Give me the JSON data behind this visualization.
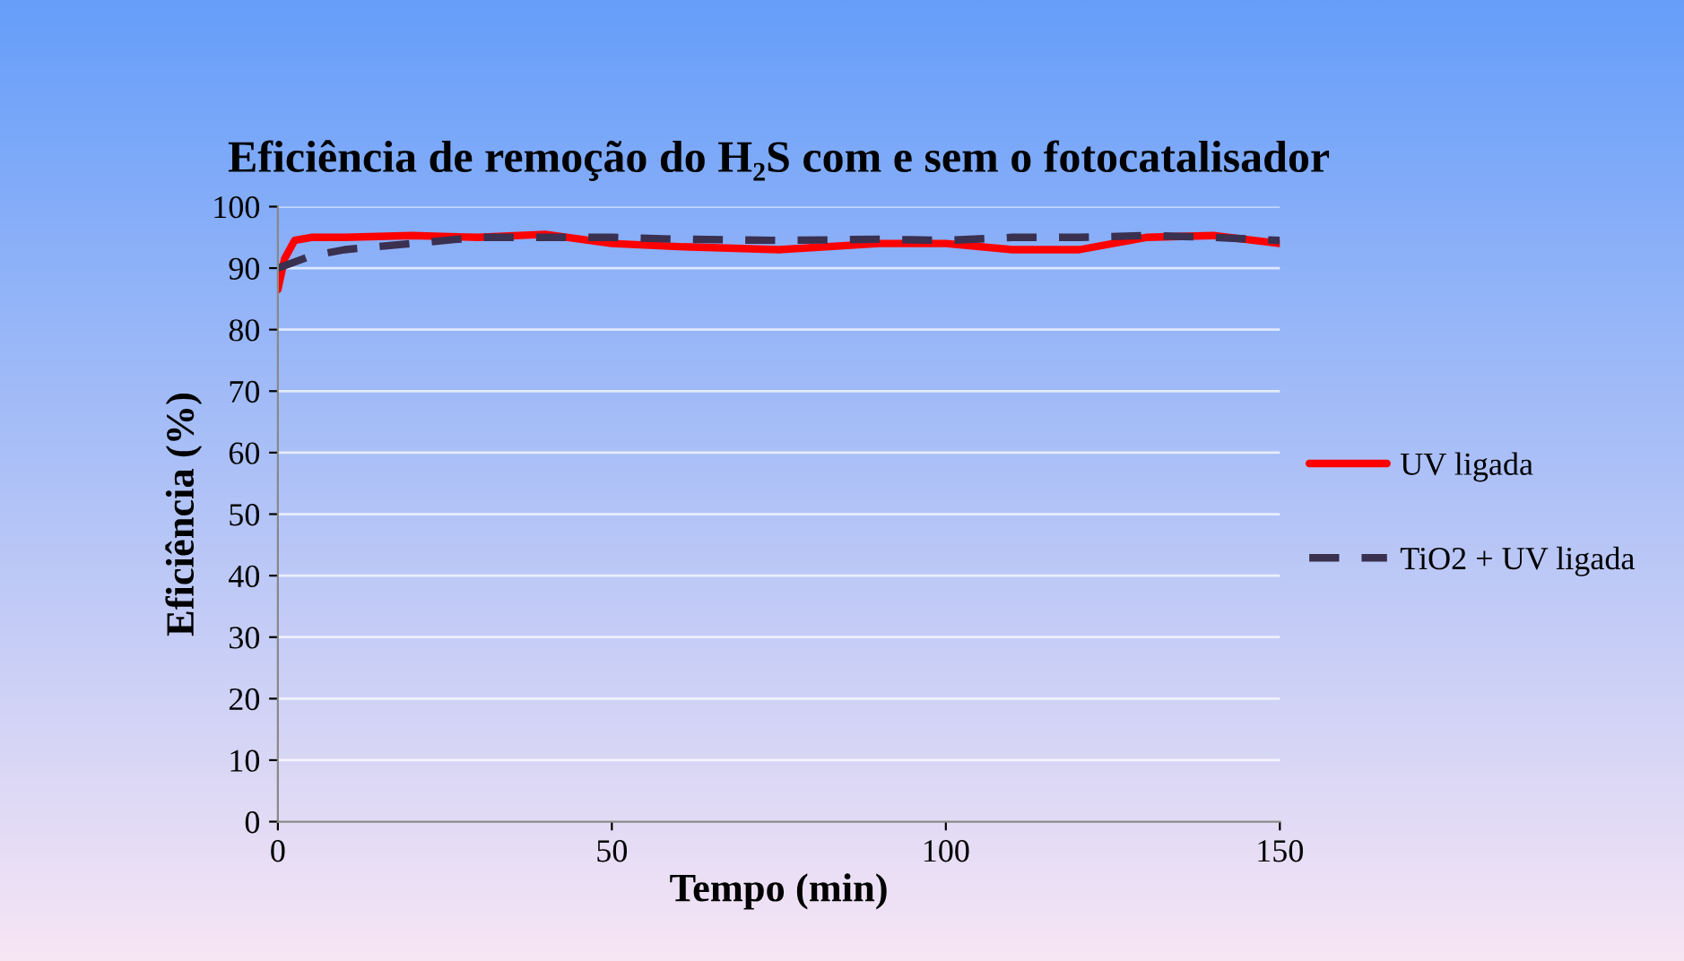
{
  "chart_data": {
    "type": "line",
    "title": "Eficiência de remoção do H₂S com e sem o fotocatalisador",
    "xlabel": "Tempo (min)",
    "ylabel": "Eficiência (%)",
    "xlim": [
      0,
      150
    ],
    "xticks": [
      0,
      50,
      100,
      150
    ],
    "ylim": [
      0,
      100
    ],
    "yticks": [
      0,
      10,
      20,
      30,
      40,
      50,
      60,
      70,
      80,
      90,
      100
    ],
    "grid": "y",
    "legend": "right",
    "series": [
      {
        "name": "UV ligada",
        "color": "#ff0000",
        "line_style": "solid",
        "x": [
          0,
          1,
          2.5,
          5,
          10,
          20,
          30,
          40,
          50,
          60,
          75,
          90,
          100,
          110,
          120,
          130,
          140,
          150
        ],
        "values": [
          86.5,
          91.5,
          94.5,
          95,
          95,
          95.3,
          95,
          95.5,
          94,
          93.5,
          93,
          94,
          94,
          93,
          93,
          95,
          95.3,
          94
        ]
      },
      {
        "name": "TiO2 + UV ligada",
        "color": "#3a3050",
        "line_style": "dashed",
        "x": [
          0,
          5,
          10,
          20,
          30,
          40,
          50,
          60,
          75,
          90,
          100,
          110,
          120,
          130,
          140,
          150
        ],
        "values": [
          90,
          92,
          93,
          94,
          95,
          95,
          95,
          94.7,
          94.5,
          94.7,
          94.5,
          95,
          95,
          95.3,
          95,
          94.5
        ]
      }
    ]
  }
}
